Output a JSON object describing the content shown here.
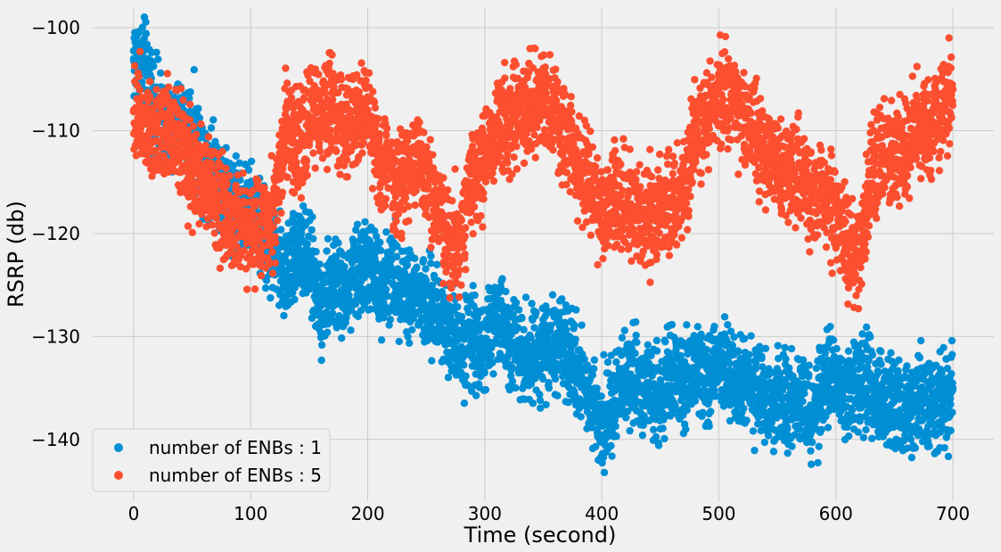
{
  "chart_data": {
    "type": "scatter",
    "title": "",
    "xlabel": "Time (second)",
    "ylabel": "RSRP (db)",
    "xlim": [
      -35,
      735
    ],
    "ylim": [
      -146,
      -98
    ],
    "xticks": [
      0,
      100,
      200,
      300,
      400,
      500,
      600,
      700
    ],
    "yticks": [
      -140,
      -130,
      -120,
      -110,
      -100
    ],
    "xtick_labels": [
      "0",
      "100",
      "200",
      "300",
      "400",
      "500",
      "600",
      "700"
    ],
    "ytick_labels": [
      "−140",
      "−130",
      "−120",
      "−110",
      "−100"
    ],
    "grid": true,
    "legend_position": "bottom-left",
    "series": [
      {
        "name": "number of ENBs : 1",
        "color": "#008fd5",
        "jitter": 2.2,
        "points": [
          [
            0,
            -103
          ],
          [
            10,
            -104
          ],
          [
            20,
            -108
          ],
          [
            30,
            -111
          ],
          [
            40,
            -109
          ],
          [
            50,
            -110
          ],
          [
            60,
            -113
          ],
          [
            70,
            -114
          ],
          [
            80,
            -116
          ],
          [
            90,
            -117
          ],
          [
            100,
            -118
          ],
          [
            110,
            -120
          ],
          [
            120,
            -122
          ],
          [
            130,
            -124
          ],
          [
            140,
            -121
          ],
          [
            150,
            -123
          ],
          [
            160,
            -127
          ],
          [
            170,
            -125
          ],
          [
            180,
            -126
          ],
          [
            190,
            -124
          ],
          [
            200,
            -123
          ],
          [
            210,
            -125
          ],
          [
            220,
            -124
          ],
          [
            230,
            -125
          ],
          [
            240,
            -126
          ],
          [
            250,
            -127
          ],
          [
            260,
            -128
          ],
          [
            270,
            -129
          ],
          [
            280,
            -131
          ],
          [
            290,
            -130
          ],
          [
            300,
            -131
          ],
          [
            310,
            -128
          ],
          [
            320,
            -130
          ],
          [
            330,
            -131
          ],
          [
            340,
            -132
          ],
          [
            350,
            -131
          ],
          [
            360,
            -131
          ],
          [
            370,
            -132
          ],
          [
            380,
            -133
          ],
          [
            390,
            -136
          ],
          [
            400,
            -138
          ],
          [
            410,
            -137
          ],
          [
            420,
            -134
          ],
          [
            430,
            -134
          ],
          [
            440,
            -135
          ],
          [
            450,
            -136
          ],
          [
            460,
            -134
          ],
          [
            470,
            -135
          ],
          [
            480,
            -133
          ],
          [
            490,
            -134
          ],
          [
            500,
            -133
          ],
          [
            510,
            -134
          ],
          [
            520,
            -134
          ],
          [
            530,
            -135
          ],
          [
            540,
            -136
          ],
          [
            550,
            -136
          ],
          [
            560,
            -137
          ],
          [
            570,
            -136
          ],
          [
            580,
            -138
          ],
          [
            590,
            -135
          ],
          [
            600,
            -134
          ],
          [
            610,
            -135
          ],
          [
            620,
            -134
          ],
          [
            630,
            -135
          ],
          [
            640,
            -136
          ],
          [
            650,
            -136
          ],
          [
            660,
            -137
          ],
          [
            670,
            -136
          ],
          [
            680,
            -137
          ],
          [
            690,
            -136
          ],
          [
            700,
            -135
          ]
        ]
      },
      {
        "name": "number of ENBs : 5",
        "color": "#fc4f30",
        "jitter": 2.4,
        "points": [
          [
            0,
            -108
          ],
          [
            10,
            -109
          ],
          [
            20,
            -110
          ],
          [
            30,
            -109
          ],
          [
            40,
            -112
          ],
          [
            50,
            -114
          ],
          [
            60,
            -115
          ],
          [
            70,
            -116
          ],
          [
            80,
            -119
          ],
          [
            90,
            -118
          ],
          [
            100,
            -120
          ],
          [
            110,
            -119
          ],
          [
            120,
            -118
          ],
          [
            130,
            -110
          ],
          [
            140,
            -112
          ],
          [
            150,
            -109
          ],
          [
            160,
            -108
          ],
          [
            170,
            -107
          ],
          [
            180,
            -110
          ],
          [
            190,
            -109
          ],
          [
            200,
            -108
          ],
          [
            210,
            -113
          ],
          [
            220,
            -114
          ],
          [
            230,
            -116
          ],
          [
            240,
            -112
          ],
          [
            250,
            -115
          ],
          [
            260,
            -118
          ],
          [
            270,
            -121
          ],
          [
            280,
            -120
          ],
          [
            290,
            -115
          ],
          [
            300,
            -112
          ],
          [
            310,
            -110
          ],
          [
            320,
            -109
          ],
          [
            330,
            -108
          ],
          [
            340,
            -108
          ],
          [
            350,
            -107
          ],
          [
            360,
            -108
          ],
          [
            370,
            -111
          ],
          [
            380,
            -113
          ],
          [
            390,
            -115
          ],
          [
            400,
            -118
          ],
          [
            410,
            -117
          ],
          [
            420,
            -117
          ],
          [
            430,
            -118
          ],
          [
            440,
            -119
          ],
          [
            450,
            -118
          ],
          [
            460,
            -117
          ],
          [
            470,
            -116
          ],
          [
            480,
            -110
          ],
          [
            490,
            -109
          ],
          [
            500,
            -106
          ],
          [
            510,
            -107
          ],
          [
            520,
            -108
          ],
          [
            530,
            -110
          ],
          [
            540,
            -112
          ],
          [
            550,
            -113
          ],
          [
            560,
            -114
          ],
          [
            570,
            -115
          ],
          [
            580,
            -116
          ],
          [
            590,
            -116
          ],
          [
            600,
            -118
          ],
          [
            610,
            -121
          ],
          [
            620,
            -123
          ],
          [
            630,
            -114
          ],
          [
            640,
            -112
          ],
          [
            650,
            -112
          ],
          [
            660,
            -112
          ],
          [
            670,
            -109
          ],
          [
            680,
            -110
          ],
          [
            690,
            -108
          ],
          [
            700,
            -106
          ]
        ]
      }
    ]
  }
}
